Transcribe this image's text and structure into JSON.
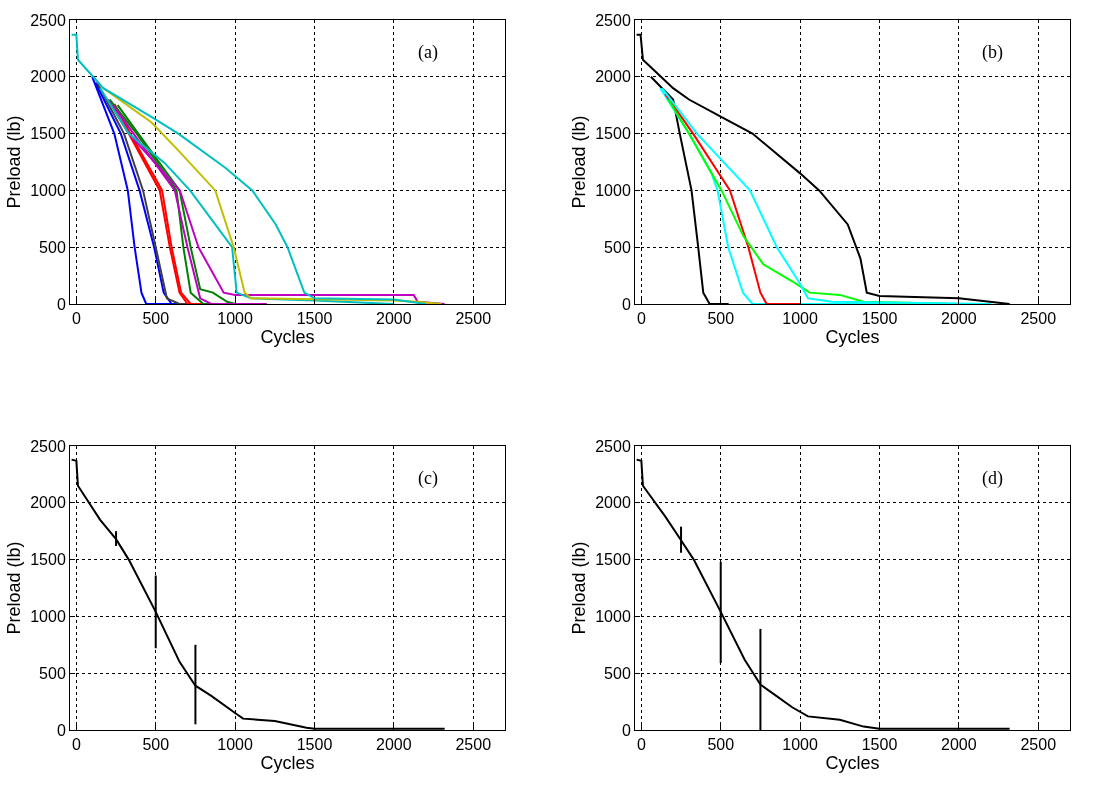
{
  "chart_data": [
    {
      "type": "line",
      "xlabel": "Cycles",
      "ylabel": "Preload (lb)",
      "annotations": [
        "(a)"
      ],
      "xlim": [
        -40,
        2700
      ],
      "ylim": [
        0,
        2500
      ],
      "xticks": [
        0,
        500,
        1000,
        1500,
        2000,
        2500
      ],
      "yticks": [
        0,
        500,
        1000,
        1500,
        2000,
        2500
      ],
      "grid": true,
      "series": [
        {
          "color": "#0000ff",
          "x": [
            100,
            239,
            324,
            367,
            410,
            440,
            600
          ],
          "values": [
            2000,
            1500,
            1000,
            500,
            100,
            0,
            0
          ]
        },
        {
          "color": "#0000ff",
          "x": [
            120,
            280,
            398,
            490,
            550,
            600,
            800
          ],
          "values": [
            1950,
            1500,
            1000,
            500,
            100,
            0,
            0
          ]
        },
        {
          "color": "#404040",
          "x": [
            130,
            300,
            420,
            500,
            570,
            650,
            800
          ],
          "values": [
            1950,
            1500,
            1000,
            500,
            50,
            0,
            0
          ]
        },
        {
          "color": "#ff0000",
          "x": [
            200,
            330,
            525,
            589,
            650,
            700,
            1000
          ],
          "values": [
            1800,
            1500,
            1000,
            500,
            100,
            0,
            0
          ]
        },
        {
          "color": "#ff0000",
          "x": [
            240,
            340,
            540,
            600,
            660,
            720,
            1000
          ],
          "values": [
            1760,
            1500,
            1000,
            500,
            100,
            0,
            0
          ]
        },
        {
          "color": "#008000",
          "x": [
            210,
            380,
            631,
            674,
            720,
            800,
            1100
          ],
          "values": [
            1800,
            1500,
            1000,
            500,
            100,
            0,
            0
          ]
        },
        {
          "color": "#008000",
          "x": [
            260,
            390,
            650,
            720,
            780,
            860,
            950,
            1000
          ],
          "values": [
            1750,
            1500,
            1000,
            500,
            130,
            100,
            20,
            0
          ]
        },
        {
          "color": "#bf00bf",
          "x": [
            230,
            360,
            620,
            700,
            780,
            850,
            1200
          ],
          "values": [
            1750,
            1500,
            1000,
            500,
            50,
            0,
            0
          ]
        },
        {
          "color": "#bf00bf",
          "x": [
            200,
            330,
            652,
            769,
            928,
            1000,
            2125,
            2150,
            2320
          ],
          "values": [
            1800,
            1500,
            1000,
            500,
            100,
            80,
            80,
            20,
            0
          ]
        },
        {
          "color": "#00bfbf",
          "x": [
            150,
            330,
            557,
            716,
            981,
            1010,
            1100,
            1500,
            2000
          ],
          "values": [
            1900,
            1500,
            1240,
            1000,
            500,
            100,
            50,
            30,
            0
          ]
        },
        {
          "color": "#bfbf00",
          "x": [
            170,
            472,
            630,
            875,
            991,
            1060,
            1100,
            2000,
            2150,
            2300
          ],
          "values": [
            1900,
            1600,
            1370,
            1000,
            500,
            100,
            50,
            30,
            20,
            0
          ]
        },
        {
          "color": "#00bfbf",
          "x": [
            -30,
            0,
            10,
            170,
            470,
            642,
            938,
            1108,
            1256,
            1330,
            1436,
            1500,
            2000,
            2200
          ],
          "values": [
            2370,
            2370,
            2150,
            1900,
            1650,
            1500,
            1200,
            1000,
            700,
            500,
            100,
            50,
            40,
            0
          ]
        }
      ]
    },
    {
      "type": "line",
      "xlabel": "Cycles",
      "ylabel": "Preload (lb)",
      "annotations": [
        "(b)"
      ],
      "xlim": [
        -40,
        2700
      ],
      "ylim": [
        0,
        2500
      ],
      "xticks": [
        0,
        500,
        1000,
        1500,
        2000,
        2500
      ],
      "yticks": [
        0,
        500,
        1000,
        1500,
        2000,
        2500
      ],
      "grid": true,
      "series": [
        {
          "color": "#000000",
          "x": [
            60,
            200,
            242,
            316,
            358,
            390,
            430,
            550
          ],
          "values": [
            2000,
            1800,
            1500,
            1000,
            500,
            100,
            0,
            0
          ]
        },
        {
          "color": "#00ffff",
          "x": [
            120,
            300,
            442,
            480,
            547,
            640,
            700,
            2000
          ],
          "values": [
            1900,
            1500,
            1150,
            1000,
            500,
            100,
            0,
            0
          ]
        },
        {
          "color": "#ff0000",
          "x": [
            150,
            326,
            558,
            674,
            750,
            789,
            1000
          ],
          "values": [
            1850,
            1500,
            1000,
            500,
            100,
            0,
            0
          ]
        },
        {
          "color": "#00ff00",
          "x": [
            170,
            300,
            505,
            642,
            768,
            950,
            1060,
            1250,
            1400,
            2000
          ],
          "values": [
            1800,
            1500,
            1000,
            600,
            350,
            200,
            100,
            80,
            20,
            0
          ]
        },
        {
          "color": "#00ffff",
          "x": [
            130,
            350,
            684,
            853,
            990,
            1050,
            1200,
            2200
          ],
          "values": [
            1900,
            1500,
            1000,
            500,
            200,
            50,
            20,
            0
          ]
        },
        {
          "color": "#000000",
          "x": [
            -30,
            -5,
            10,
            200,
            300,
            500,
            700,
            1000,
            1120,
            1300,
            1380,
            1420,
            1500,
            2000,
            2320
          ],
          "values": [
            2370,
            2370,
            2150,
            1900,
            1800,
            1650,
            1500,
            1150,
            1000,
            700,
            400,
            100,
            70,
            50,
            0
          ]
        }
      ]
    },
    {
      "type": "line",
      "xlabel": "Cycles",
      "ylabel": "Preload (lb)",
      "annotations": [
        "(c)"
      ],
      "xlim": [
        -40,
        2700
      ],
      "ylim": [
        0,
        2500
      ],
      "xticks": [
        0,
        500,
        1000,
        1500,
        2000,
        2500
      ],
      "yticks": [
        0,
        500,
        1000,
        1500,
        2000,
        2500
      ],
      "grid": true,
      "series": [
        {
          "color": "#000000",
          "x": [
            -30,
            0,
            10,
            150,
            250,
            330,
            500,
            650,
            750,
            850,
            1000,
            1050,
            1250,
            1450,
            1500,
            2000,
            2320
          ],
          "values": [
            2380,
            2370,
            2150,
            1850,
            1680,
            1500,
            1040,
            600,
            390,
            300,
            150,
            100,
            80,
            20,
            10,
            10,
            10
          ],
          "errors": [
            null,
            null,
            null,
            null,
            [
              1620,
              1750
            ],
            null,
            [
              720,
              1360
            ],
            null,
            [
              50,
              750
            ],
            null,
            null,
            null,
            null,
            null,
            null,
            null,
            null
          ]
        }
      ]
    },
    {
      "type": "line",
      "xlabel": "Cycles",
      "ylabel": "Preload (lb)",
      "annotations": [
        "(d)"
      ],
      "xlim": [
        -40,
        2700
      ],
      "ylim": [
        0,
        2500
      ],
      "xticks": [
        0,
        500,
        1000,
        1500,
        2000,
        2500
      ],
      "yticks": [
        0,
        500,
        1000,
        1500,
        2000,
        2500
      ],
      "grid": true,
      "series": [
        {
          "color": "#000000",
          "x": [
            -30,
            0,
            10,
            150,
            250,
            330,
            500,
            650,
            750,
            850,
            950,
            1050,
            1250,
            1400,
            1500,
            2320
          ],
          "values": [
            2380,
            2370,
            2150,
            1880,
            1670,
            1500,
            1040,
            620,
            400,
            300,
            200,
            120,
            90,
            30,
            10,
            10
          ],
          "errors": [
            null,
            null,
            null,
            null,
            [
              1560,
              1790
            ],
            null,
            [
              590,
              1480
            ],
            null,
            [
              0,
              890
            ],
            null,
            null,
            null,
            null,
            null,
            null,
            null
          ]
        }
      ]
    }
  ]
}
